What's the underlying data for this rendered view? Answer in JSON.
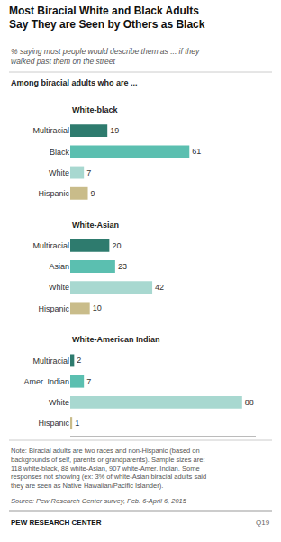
{
  "chart_data": {
    "type": "bar",
    "orientation": "horizontal",
    "title": "Most Biracial White and Black Adults\nSay They are Seen by Others as Black",
    "subtitle": "% saying most people would describe them as ... if they\nwalked past them on the street",
    "annotations": [
      "Among biracial adults who are ...",
      "Note: Biracial adults are two races and non-Hispanic (based on\nbackgrounds of self, parents or grandparents). Sample sizes are:\n118 white-black, 88 white-Asian, 907 white-Amer. Indian. Some\nresponses not showing (ex: 3% of white-Asian biracial adults said\nthey are seen as Native Hawaiian/Pacific Islander).",
      "Source: Pew Research Center survey, Feb. 6-April 6, 2015",
      "PEW RESEARCH CENTER",
      "Q19"
    ],
    "groups": [
      {
        "name": "White-black",
        "categories": [
          "Multiracial",
          "Black",
          "White",
          "Hispanic"
        ],
        "values": [
          19,
          61,
          7,
          9
        ],
        "colors": [
          "#2e7b6e",
          "#5bbfb0",
          "#a8d8d0",
          "#c9bc8a"
        ]
      },
      {
        "name": "White-Asian",
        "categories": [
          "Multiracial",
          "Asian",
          "White",
          "Hispanic"
        ],
        "values": [
          20,
          23,
          42,
          10
        ],
        "colors": [
          "#2e7b6e",
          "#5bbfb0",
          "#a8d8d0",
          "#c9bc8a"
        ]
      },
      {
        "name": "White-American Indian",
        "categories": [
          "Multiracial",
          "Amer. Indian",
          "White",
          "Hispanic"
        ],
        "values": [
          2,
          7,
          88,
          1
        ],
        "colors": [
          "#2e7b6e",
          "#5bbfb0",
          "#a8d8d0",
          "#c9bc8a"
        ]
      }
    ],
    "xlim": [
      0,
      95
    ],
    "data_labels": true,
    "tick_labels": "y",
    "grid": false
  }
}
